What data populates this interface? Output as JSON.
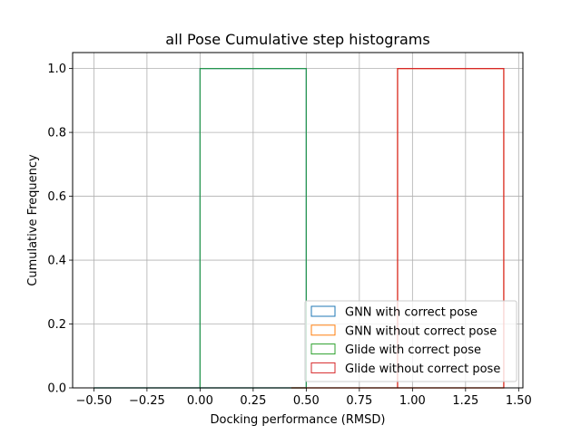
{
  "chart_data": {
    "type": "histogram",
    "histtype": "step",
    "cumulative": true,
    "title": "all Pose Cumulative step histograms",
    "xlabel": "Docking performance (RMSD)",
    "ylabel": "Cumulative Frequency",
    "xlim": [
      -0.6,
      1.52
    ],
    "ylim": [
      0.0,
      1.05
    ],
    "xticks": [
      -0.5,
      -0.25,
      0.0,
      0.25,
      0.5,
      0.75,
      1.0,
      1.25,
      1.5
    ],
    "xtick_labels": [
      "−0.50",
      "−0.25",
      "0.00",
      "0.25",
      "0.50",
      "0.75",
      "1.00",
      "1.25",
      "1.50"
    ],
    "yticks": [
      0.0,
      0.2,
      0.4,
      0.6,
      0.8,
      1.0
    ],
    "ytick_labels": [
      "0.0",
      "0.2",
      "0.4",
      "0.6",
      "0.8",
      "1.0"
    ],
    "grid": true,
    "legend_position": "lower right",
    "series": [
      {
        "name": "GNN with correct pose",
        "color": "#1f77b4",
        "bin_edges": [
          -0.5,
          0.0,
          0.5
        ],
        "cumulative": [
          0.0,
          1.0
        ]
      },
      {
        "name": "GNN without correct pose",
        "color": "#ff7f0e",
        "bin_edges": [
          0.43,
          0.93,
          1.43
        ],
        "cumulative": [
          0.0,
          1.0
        ]
      },
      {
        "name": "Glide with correct pose",
        "color": "#2ca02c",
        "bin_edges": [
          -0.5,
          0.0,
          0.5
        ],
        "cumulative": [
          0.0,
          1.0
        ]
      },
      {
        "name": "Glide without correct pose",
        "color": "#d62728",
        "bin_edges": [
          0.43,
          0.93,
          1.43
        ],
        "cumulative": [
          0.0,
          1.0
        ]
      }
    ]
  }
}
